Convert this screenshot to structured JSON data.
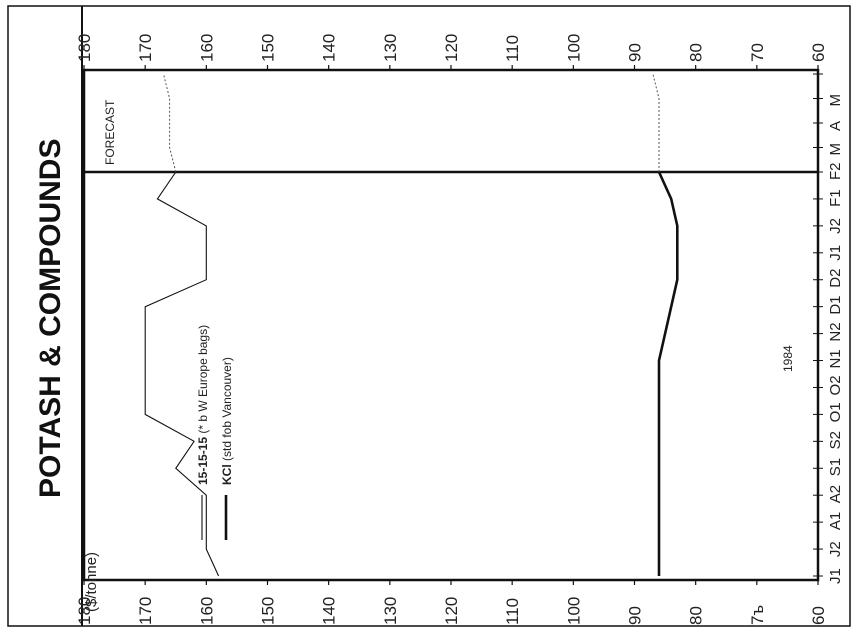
{
  "chart_data": {
    "type": "line",
    "title": "POTASH & COMPOUNDS",
    "ylabel": "($/tonne)",
    "ylim": [
      60,
      180
    ],
    "yticks": [
      "180",
      "170",
      "160",
      "150",
      "140",
      "130",
      "120",
      "110",
      "100",
      "90",
      "80",
      "70",
      "60"
    ],
    "yticks_left_80_70": [
      "80",
      "7ъ"
    ],
    "year_label": "1984",
    "forecast_label": "FORECAST",
    "x_labels": [
      "J1",
      "J2",
      "A1",
      "A2",
      "S1",
      "S2",
      "O1",
      "O2",
      "N1",
      "N2",
      "D1",
      "D2",
      "J1",
      "J2",
      "F1",
      "F2",
      "M",
      "A",
      "M"
    ],
    "series": [
      {
        "name": "15-15-15",
        "legend_note": "(* b W Europe bags)",
        "style": "thin",
        "values": [
          158,
          160,
          160,
          160,
          165,
          162,
          170,
          170,
          170,
          170,
          170,
          160,
          160,
          160,
          168,
          165
        ]
      },
      {
        "name": "KCl",
        "legend_note": "(std fob Vancouver)",
        "style": "thick",
        "values": [
          86,
          86,
          86,
          86,
          86,
          86,
          86,
          86,
          86,
          85,
          84,
          83,
          83,
          83,
          84,
          86
        ]
      }
    ],
    "forecast_series": [
      {
        "name": "15-15-15",
        "values": [
          165,
          166,
          166,
          166,
          167
        ]
      },
      {
        "name": "KCl",
        "values": [
          86,
          86,
          86,
          86,
          87
        ]
      }
    ],
    "grid": false,
    "legend_placement": "left"
  }
}
